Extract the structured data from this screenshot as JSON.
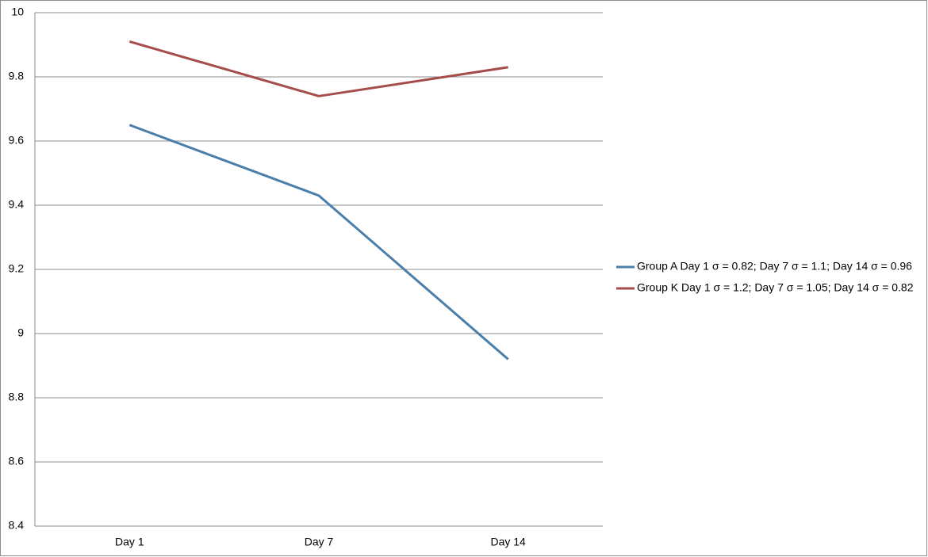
{
  "chart_data": {
    "type": "line",
    "categories": [
      "Day 1",
      "Day 7",
      "Day 14"
    ],
    "series": [
      {
        "name": "Group A Day 1 σ = 0.82; Day 7 σ = 1.1; Day 14 σ = 0.96",
        "color": "#4a7eab",
        "values": [
          9.65,
          9.43,
          8.92
        ]
      },
      {
        "name": "Group K Day 1 σ = 1.2; Day 7 σ = 1.05; Day 14 σ = 0.82",
        "color": "#a54d4a",
        "values": [
          9.91,
          9.74,
          9.83
        ]
      }
    ],
    "ylim": [
      8.4,
      10
    ],
    "yticks": [
      8.4,
      8.6,
      8.8,
      9,
      9.2,
      9.4,
      9.6,
      9.8,
      10
    ],
    "grid": true,
    "legend": "right"
  }
}
